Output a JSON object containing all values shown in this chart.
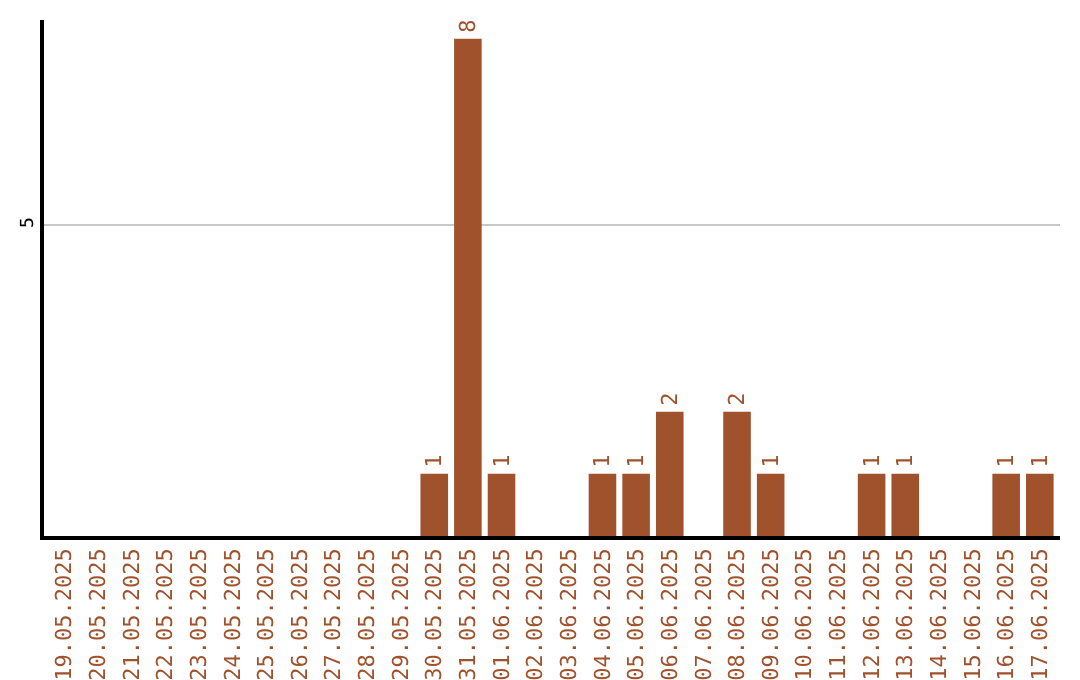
{
  "chart_data": {
    "type": "bar",
    "categories": [
      "19.05.2025",
      "20.05.2025",
      "21.05.2025",
      "22.05.2025",
      "23.05.2025",
      "24.05.2025",
      "25.05.2025",
      "26.05.2025",
      "27.05.2025",
      "28.05.2025",
      "29.05.2025",
      "30.05.2025",
      "31.05.2025",
      "01.06.2025",
      "02.06.2025",
      "03.06.2025",
      "04.06.2025",
      "05.06.2025",
      "06.06.2025",
      "07.06.2025",
      "08.06.2025",
      "09.06.2025",
      "10.06.2025",
      "11.06.2025",
      "12.06.2025",
      "13.06.2025",
      "14.06.2025",
      "15.06.2025",
      "16.06.2025",
      "17.06.2025"
    ],
    "values": [
      0,
      0,
      0,
      0,
      0,
      0,
      0,
      0,
      0,
      0,
      0,
      1,
      8,
      1,
      0,
      0,
      1,
      1,
      2,
      0,
      2,
      1,
      0,
      0,
      1,
      1,
      0,
      0,
      1,
      1
    ],
    "value_labels": [
      null,
      null,
      null,
      null,
      null,
      null,
      null,
      null,
      null,
      null,
      null,
      "1",
      "8",
      "1",
      null,
      null,
      "1",
      "1",
      "2",
      null,
      "2",
      "1",
      null,
      null,
      "1",
      "1",
      null,
      null,
      "1",
      "1"
    ],
    "color": "#a0522d",
    "ylim": [
      0,
      8.3
    ],
    "yticks": [
      5
    ],
    "grid": "y",
    "legend": false
  }
}
